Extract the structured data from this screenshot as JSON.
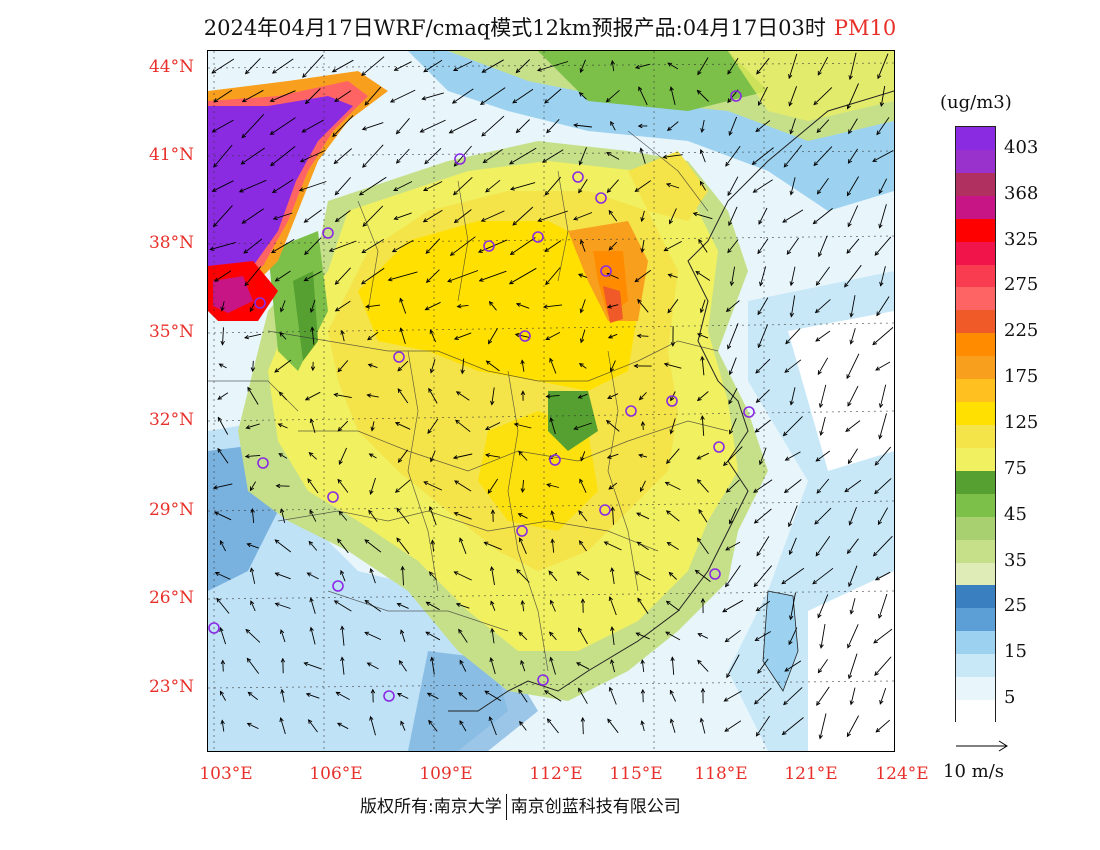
{
  "title": {
    "main": "2024年04月17日WRF/cmaq模式12km预报产品:04月17日03时",
    "pollutant": "PM10"
  },
  "axes": {
    "lat_labels": [
      "44°N",
      "41°N",
      "38°N",
      "35°N",
      "32°N",
      "29°N",
      "26°N",
      "23°N"
    ],
    "lon_labels": [
      "103°E",
      "106°E",
      "109°E",
      "112°E",
      "115°E",
      "118°E",
      "121°E",
      "124°E"
    ]
  },
  "legend": {
    "unit": "(ug/m3)",
    "levels": [
      {
        "label": "403",
        "color": "#8a2be2"
      },
      {
        "label": "",
        "color": "#9932cc"
      },
      {
        "label": "368",
        "color": "#b03060"
      },
      {
        "label": "",
        "color": "#c71585"
      },
      {
        "label": "325",
        "color": "#ff0000"
      },
      {
        "label": "",
        "color": "#f0144a"
      },
      {
        "label": "275",
        "color": "#fa3c50"
      },
      {
        "label": "",
        "color": "#ff6464"
      },
      {
        "label": "225",
        "color": "#f05a28"
      },
      {
        "label": "",
        "color": "#ff8c00"
      },
      {
        "label": "175",
        "color": "#f8a01e"
      },
      {
        "label": "",
        "color": "#ffc020"
      },
      {
        "label": "125",
        "color": "#ffe000"
      },
      {
        "label": "",
        "color": "#f5e34a"
      },
      {
        "label": "75",
        "color": "#f0f060"
      },
      {
        "label": "",
        "color": "#55a030"
      },
      {
        "label": "45",
        "color": "#7cc04a"
      },
      {
        "label": "",
        "color": "#a8d070"
      },
      {
        "label": "35",
        "color": "#c6e08a"
      },
      {
        "label": "",
        "color": "#e0ecb8"
      },
      {
        "label": "25",
        "color": "#3a7fc0"
      },
      {
        "label": "",
        "color": "#5c9ed6"
      },
      {
        "label": "15",
        "color": "#9cd2f0"
      },
      {
        "label": "",
        "color": "#c8e8f8"
      },
      {
        "label": "5",
        "color": "#e8f6fc"
      },
      {
        "label": "",
        "color": "#ffffff"
      }
    ]
  },
  "wind_reference": {
    "label": "10 m/s"
  },
  "footer": {
    "copyright": "版权所有:南京大学",
    "company": "南京创蓝科技有限公司"
  }
}
